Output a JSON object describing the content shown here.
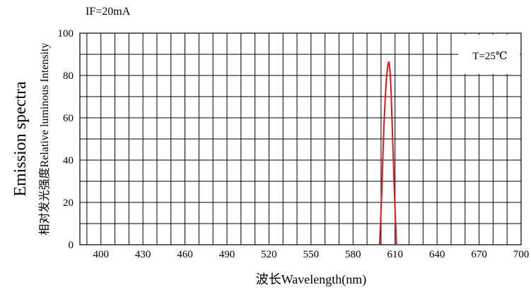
{
  "chart_data": {
    "type": "line",
    "condition": "IF=20mA",
    "ylabel_main": "Emission spectra",
    "ylabel_sub": "相对发光强度Relative luminous Intensity",
    "xlabel": "波长Wavelength(nm)",
    "annotation": "T=25℃",
    "xlim": [
      385,
      700
    ],
    "ylim": [
      0,
      100
    ],
    "x_ticks": [
      400,
      430,
      460,
      490,
      520,
      550,
      580,
      610,
      640,
      670,
      700
    ],
    "y_ticks": [
      0,
      20,
      40,
      60,
      80,
      100
    ],
    "grid": true,
    "series": [
      {
        "color": "#e8141a",
        "x": [
          599,
          600.5,
          602,
          603.5,
          604.5,
          605.3,
          606,
          607,
          608.3,
          609.8,
          611
        ],
        "y": [
          0,
          25,
          55,
          75,
          83,
          86,
          85,
          75,
          50,
          20,
          0
        ]
      }
    ]
  }
}
